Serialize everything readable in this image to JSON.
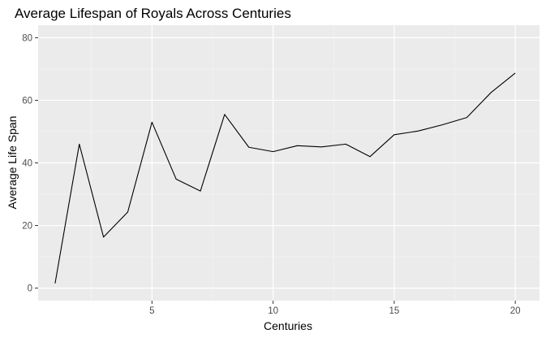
{
  "chart_data": {
    "type": "line",
    "title": "Average Lifespan of Royals Across Centuries",
    "xlabel": "Centuries",
    "ylabel": "Average Life Span",
    "xlim": [
      0.3,
      21.0
    ],
    "ylim": [
      -4,
      84
    ],
    "x_ticks": [
      5,
      10,
      15,
      20
    ],
    "y_ticks": [
      0,
      20,
      40,
      60,
      80
    ],
    "x_minor": [
      2.5,
      7.5,
      12.5,
      17.5
    ],
    "y_minor": [
      10,
      30,
      50,
      70
    ],
    "grid": true,
    "legend": "none",
    "series": [
      {
        "x": [
          1,
          2,
          3,
          4,
          5,
          6,
          7,
          8,
          9,
          10,
          11,
          12,
          13,
          14,
          15,
          16,
          17,
          18,
          19,
          20
        ],
        "y": [
          1.5,
          46,
          16.3,
          24.3,
          53,
          34.8,
          31,
          55.5,
          45,
          43.6,
          45.5,
          45.1,
          46,
          42,
          49,
          50.2,
          52.2,
          54.5,
          62.5,
          68.7
        ],
        "color": "#000000"
      }
    ],
    "colors": {
      "panel_bg": "#ebebeb",
      "grid_major": "#ffffff",
      "grid_minor": "#f5f5f5",
      "tick": "#333333"
    }
  }
}
